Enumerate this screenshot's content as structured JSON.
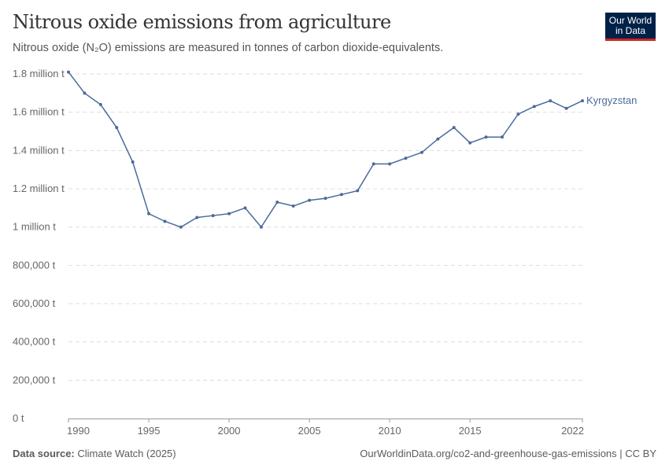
{
  "header": {
    "title": "Nitrous oxide emissions from agriculture",
    "subtitle": "Nitrous oxide (N₂O) emissions are measured in tonnes of carbon dioxide-equivalents.",
    "logo": "Our World in Data"
  },
  "footer": {
    "source_label": "Data source:",
    "source": "Climate Watch (2025)",
    "url": "OurWorldinData.org/co2-and-greenhouse-gas-emissions | CC BY"
  },
  "chart_data": {
    "type": "line",
    "title": "Nitrous oxide emissions from agriculture",
    "ylim": [
      0,
      1800000
    ],
    "xlim": [
      1990,
      2022
    ],
    "grid": "horizontal dashed",
    "y_ticks": [
      {
        "v": 0,
        "label": "0 t"
      },
      {
        "v": 200000,
        "label": "200,000 t"
      },
      {
        "v": 400000,
        "label": "400,000 t"
      },
      {
        "v": 600000,
        "label": "600,000 t"
      },
      {
        "v": 800000,
        "label": "800,000 t"
      },
      {
        "v": 1000000,
        "label": "1 million t"
      },
      {
        "v": 1200000,
        "label": "1.2 million t"
      },
      {
        "v": 1400000,
        "label": "1.4 million t"
      },
      {
        "v": 1600000,
        "label": "1.6 million t"
      },
      {
        "v": 1800000,
        "label": "1.8 million t"
      }
    ],
    "x_ticks": [
      1990,
      1995,
      2000,
      2005,
      2010,
      2015,
      2022
    ],
    "series": [
      {
        "name": "Kyrgyzstan",
        "color": "#4c6a9c",
        "x": [
          1990,
          1991,
          1992,
          1993,
          1994,
          1995,
          1996,
          1997,
          1998,
          1999,
          2000,
          2001,
          2002,
          2003,
          2004,
          2005,
          2006,
          2007,
          2008,
          2009,
          2010,
          2011,
          2012,
          2013,
          2014,
          2015,
          2016,
          2017,
          2018,
          2019,
          2020,
          2021,
          2022
        ],
        "values": [
          1810000,
          1700000,
          1640000,
          1520000,
          1340000,
          1070000,
          1030000,
          1000000,
          1050000,
          1060000,
          1070000,
          1100000,
          1000000,
          1130000,
          1110000,
          1140000,
          1150000,
          1170000,
          1190000,
          1330000,
          1330000,
          1360000,
          1390000,
          1460000,
          1520000,
          1440000,
          1470000,
          1470000,
          1590000,
          1630000,
          1660000,
          1620000,
          1660000
        ]
      }
    ]
  }
}
